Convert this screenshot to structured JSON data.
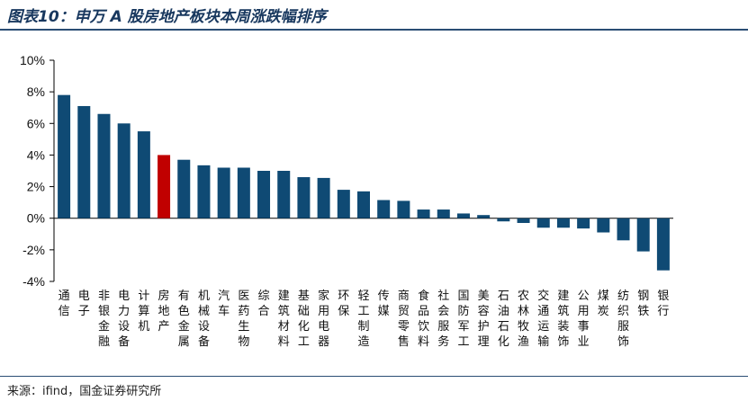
{
  "title": "图表10：申万 A 股房地产板块本周涨跌幅排序",
  "source": "来源：ifind，国金证券研究所",
  "colors": {
    "bar": "#0f4a74",
    "highlight": "#c00000",
    "axis": "#000000"
  },
  "chart_data": {
    "type": "bar",
    "categories": [
      "通信",
      "电子",
      "非银金融",
      "电力设备",
      "计算机",
      "房地产",
      "有色金属",
      "机械设备",
      "汽车",
      "医药生物",
      "综合",
      "建筑材料",
      "基础化工",
      "家用电器",
      "环保",
      "轻工制造",
      "传媒",
      "商贸零售",
      "食品饮料",
      "社会服务",
      "国防军工",
      "美容护理",
      "石油石化",
      "农林牧渔",
      "交通运输",
      "建筑装饰",
      "公用事业",
      "煤炭",
      "纺织服饰",
      "钢铁",
      "银行"
    ],
    "values": [
      7.8,
      7.1,
      6.6,
      6.0,
      5.5,
      4.0,
      3.7,
      3.35,
      3.2,
      3.2,
      3.0,
      3.0,
      2.6,
      2.55,
      1.8,
      1.7,
      1.15,
      1.1,
      0.55,
      0.55,
      0.3,
      0.2,
      -0.2,
      -0.3,
      -0.6,
      -0.6,
      -0.65,
      -0.9,
      -1.4,
      -2.1,
      -3.3
    ],
    "highlight": "房地产",
    "yticks": [
      10,
      8,
      6,
      4,
      2,
      0,
      -2,
      -4
    ],
    "ytick_labels": [
      "10%",
      "8%",
      "6%",
      "4%",
      "2%",
      "0%",
      "-2%",
      "-4%"
    ],
    "ylim": [
      -4,
      10
    ],
    "grid": false,
    "legend": "none"
  }
}
